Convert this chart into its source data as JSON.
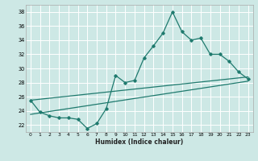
{
  "xlabel": "Humidex (Indice chaleur)",
  "bg_color": "#cde8e5",
  "grid_color": "#ffffff",
  "line_color": "#1f7a6e",
  "x": [
    0,
    1,
    2,
    3,
    4,
    5,
    6,
    7,
    8,
    9,
    10,
    11,
    12,
    13,
    14,
    15,
    16,
    17,
    18,
    19,
    20,
    21,
    22,
    23
  ],
  "y_main": [
    25.5,
    23.8,
    23.3,
    23.0,
    23.0,
    22.8,
    21.5,
    22.2,
    24.3,
    29.0,
    28.0,
    28.3,
    31.5,
    33.2,
    35.0,
    38.0,
    35.2,
    34.0,
    34.3,
    32.0,
    32.0,
    31.0,
    29.5,
    28.5
  ],
  "trend1": [
    25.5,
    28.8
  ],
  "trend2": [
    23.5,
    28.2
  ],
  "ylim": [
    21.0,
    39.0
  ],
  "xlim": [
    -0.5,
    23.5
  ],
  "yticks": [
    22,
    24,
    26,
    28,
    30,
    32,
    34,
    36,
    38
  ],
  "xticks": [
    0,
    1,
    2,
    3,
    4,
    5,
    6,
    7,
    8,
    9,
    10,
    11,
    12,
    13,
    14,
    15,
    16,
    17,
    18,
    19,
    20,
    21,
    22,
    23
  ]
}
